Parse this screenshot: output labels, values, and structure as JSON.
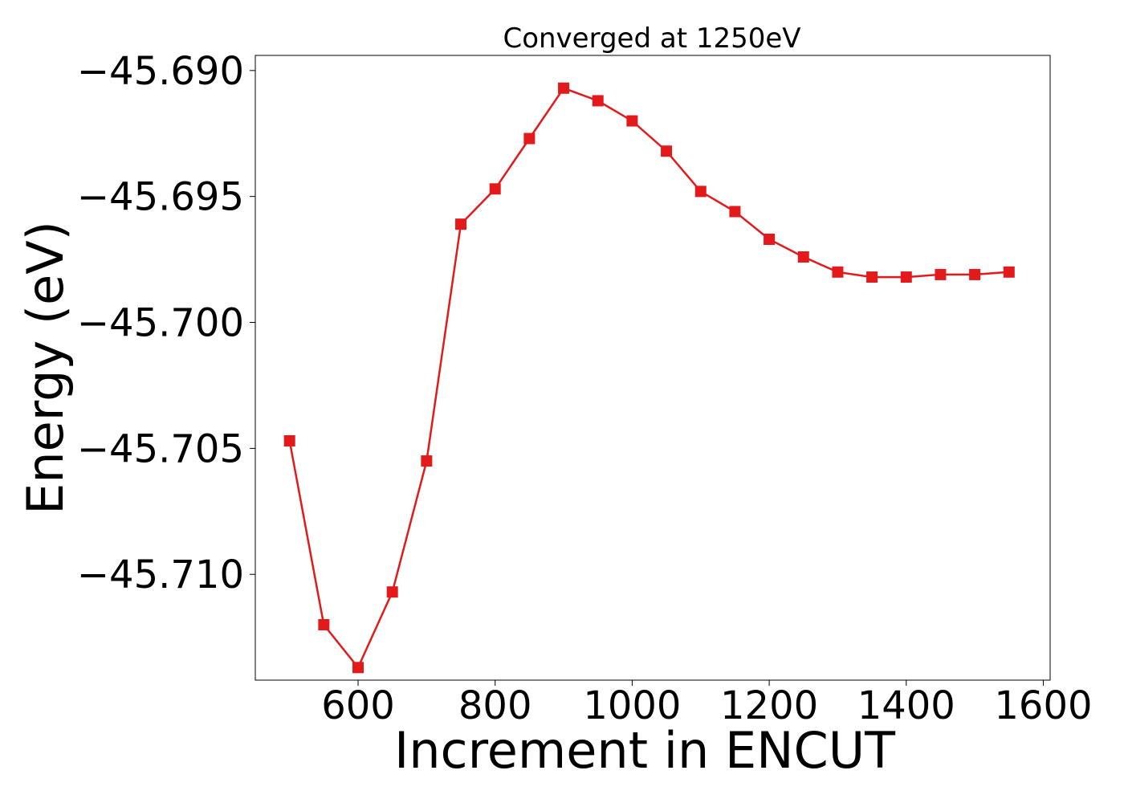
{
  "chart_data": {
    "type": "line",
    "title": "Converged at 1250eV",
    "xlabel": "Increment in ENCUT",
    "ylabel": "Energy (eV)",
    "xlim": [
      450,
      1610
    ],
    "ylim": [
      -45.7142,
      -45.6894
    ],
    "xticks": [
      600,
      800,
      1000,
      1200,
      1400,
      1600
    ],
    "xtick_labels": [
      "600",
      "800",
      "1000",
      "1200",
      "1400",
      "1600"
    ],
    "yticks": [
      -45.69,
      -45.695,
      -45.7,
      -45.705,
      -45.71
    ],
    "ytick_labels": [
      "−45.690",
      "−45.695",
      "−45.700",
      "−45.705",
      "−45.710"
    ],
    "grid": false,
    "series": [
      {
        "color": "#e31a1c",
        "marker": "square",
        "x": [
          500,
          550,
          600,
          650,
          700,
          750,
          800,
          850,
          900,
          950,
          1000,
          1050,
          1100,
          1150,
          1200,
          1250,
          1300,
          1350,
          1400,
          1450,
          1500,
          1550
        ],
        "y": [
          -45.7047,
          -45.712,
          -45.7137,
          -45.7107,
          -45.7055,
          -45.6961,
          -45.6947,
          -45.6927,
          -45.6907,
          -45.6912,
          -45.692,
          -45.6932,
          -45.6948,
          -45.6956,
          -45.6967,
          -45.6974,
          -45.698,
          -45.6982,
          -45.6982,
          -45.6981,
          -45.6981,
          -45.698
        ]
      }
    ]
  }
}
